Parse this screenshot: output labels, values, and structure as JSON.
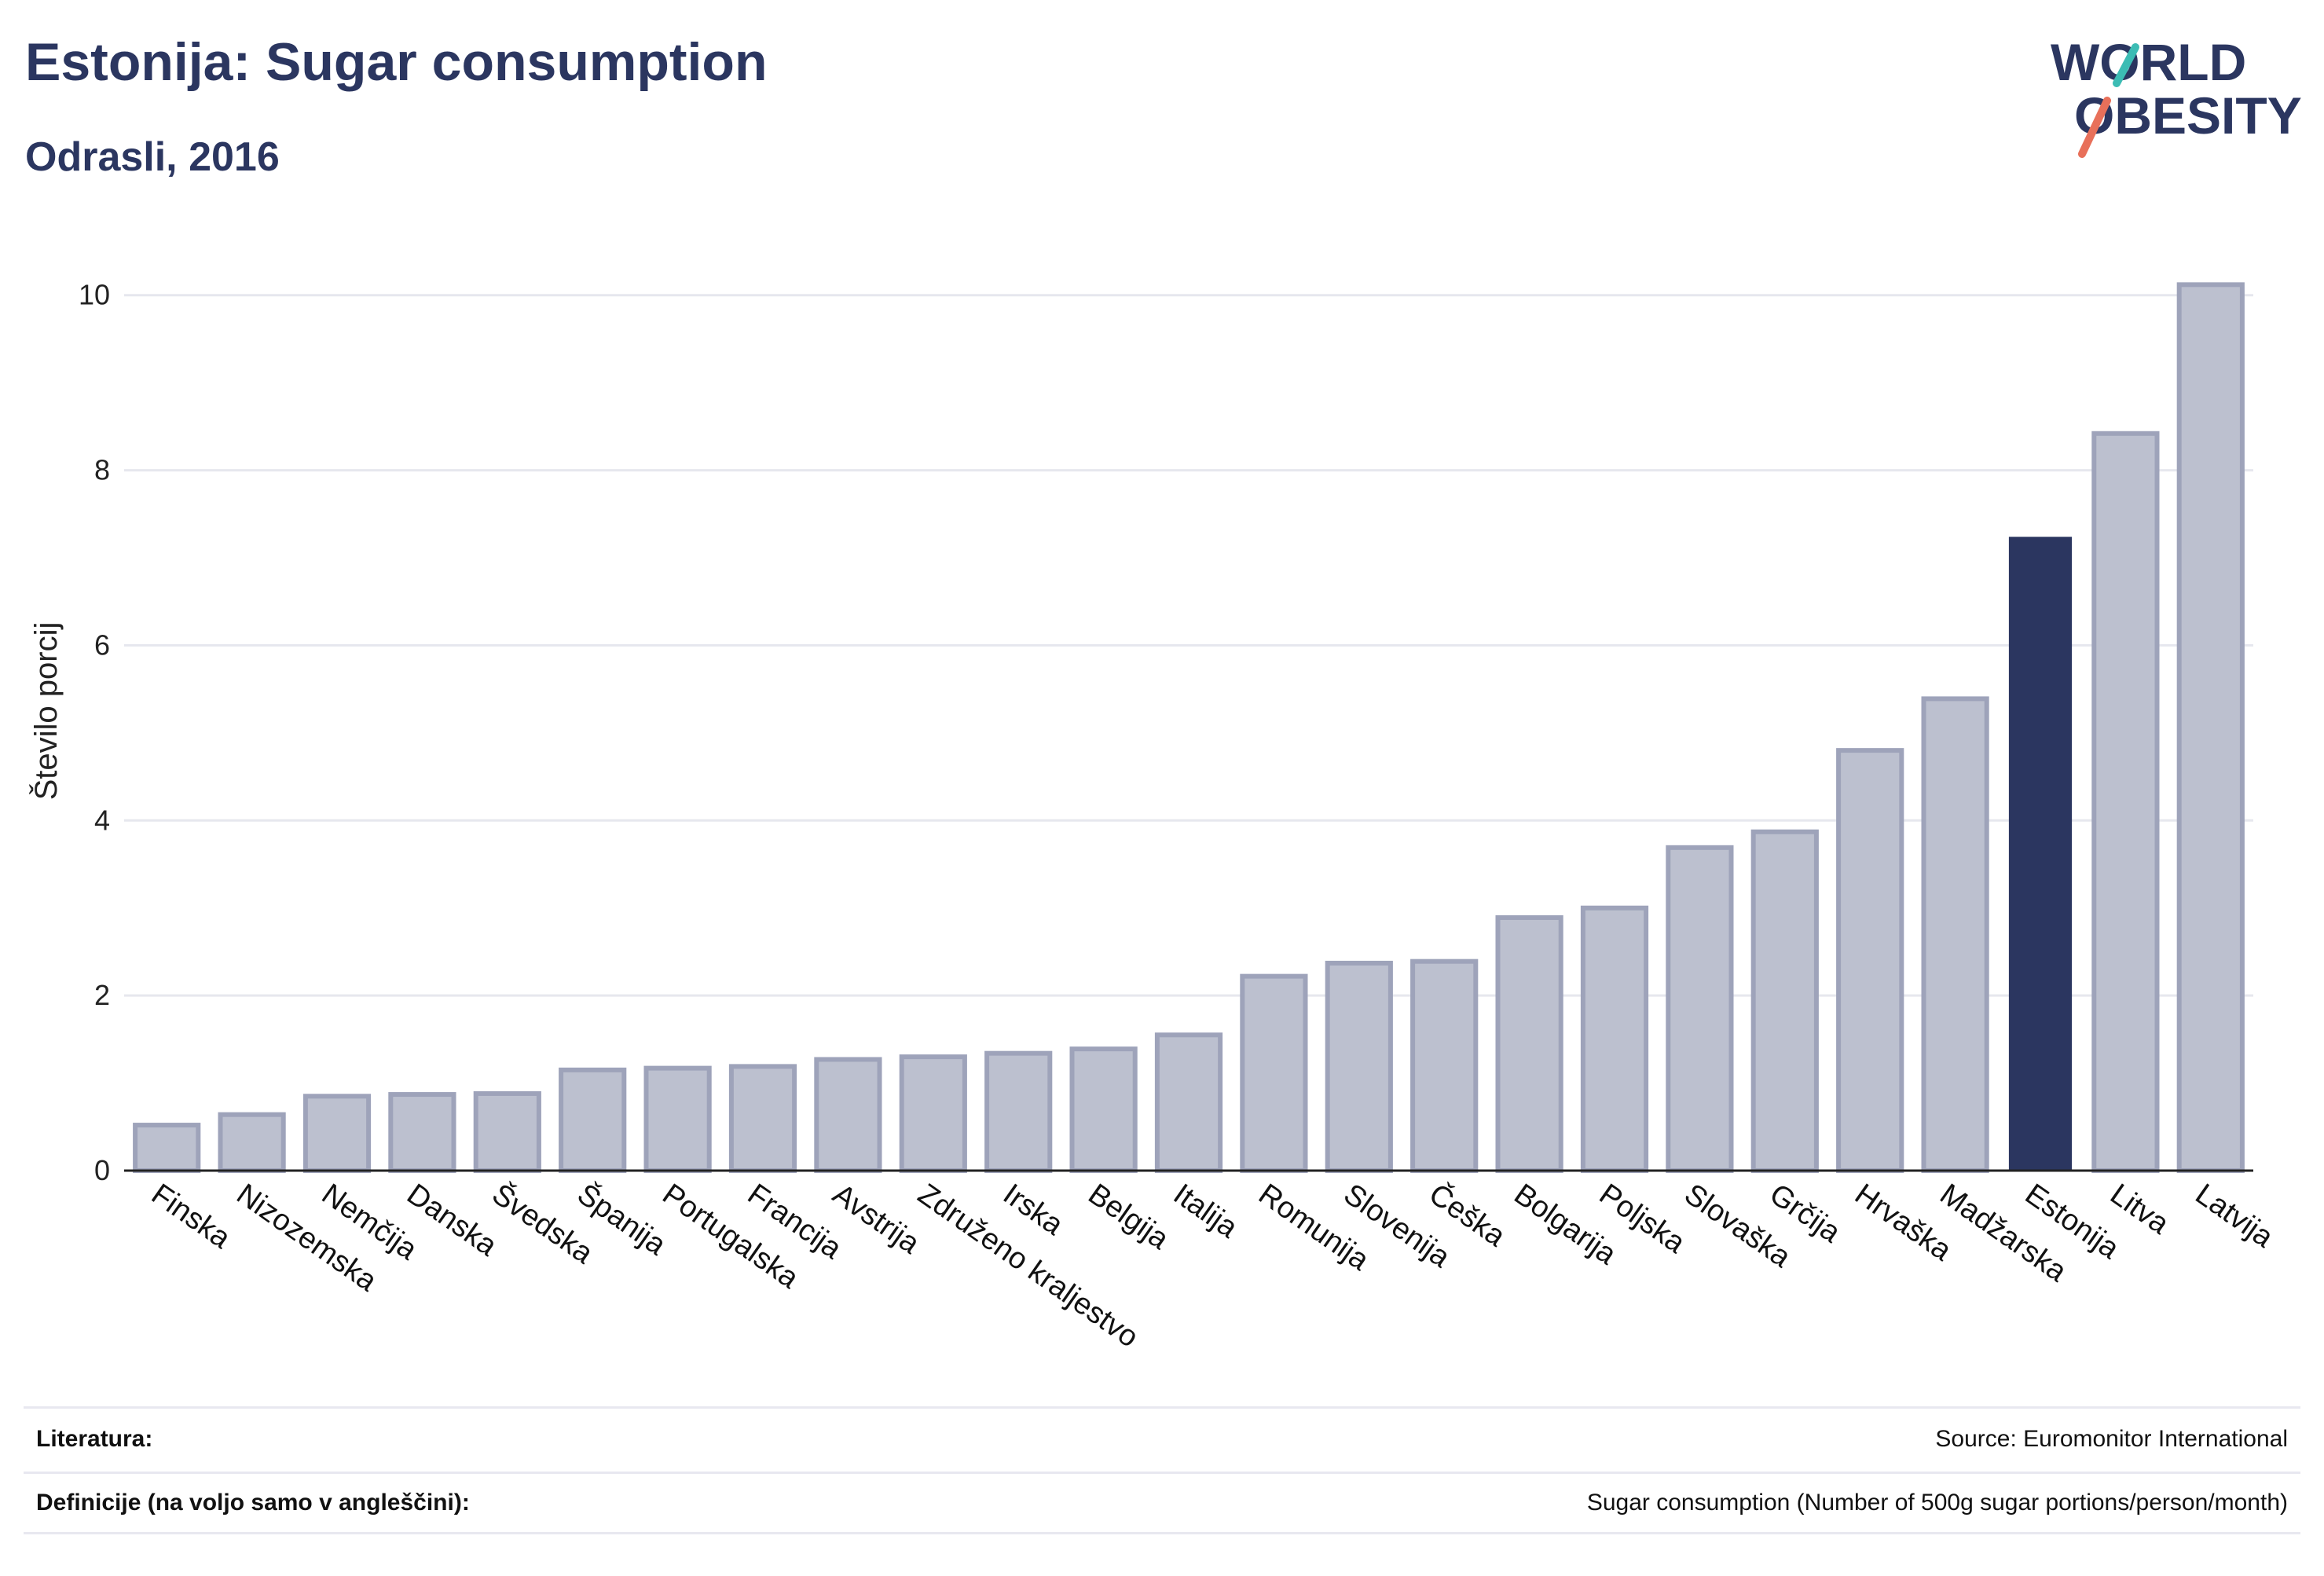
{
  "header": {
    "title": "Estonija: Sugar consumption",
    "subtitle": "Odrasli, 2016"
  },
  "logo": {
    "line1": "WORLD",
    "line2": "OBESITY",
    "slash_colors": [
      "#3cbcb4",
      "#e8705a"
    ]
  },
  "colors": {
    "bar": "#bcc0cf",
    "bar_stroke": "#9ea3ba",
    "highlight": "#2b3660",
    "grid": "#e6e7ee",
    "axis": "#222222"
  },
  "chart_data": {
    "type": "bar",
    "ylabel": "Število porcij",
    "xlabel": "",
    "ylim": [
      0,
      10.5
    ],
    "yticks": [
      0,
      2,
      4,
      6,
      8,
      10
    ],
    "grid": true,
    "highlight": "Estonija",
    "categories": [
      "Finska",
      "Nizozemska",
      "Nemčija",
      "Danska",
      "Švedska",
      "Španija",
      "Portugalska",
      "Francija",
      "Avstrija",
      "Združeno kraljestvo",
      "Irska",
      "Belgija",
      "Italija",
      "Romunija",
      "Slovenija",
      "Češka",
      "Bolgarija",
      "Poljska",
      "Slovaška",
      "Grčija",
      "Hrvaška",
      "Madžarska",
      "Estonija",
      "Litva",
      "Latvija"
    ],
    "values": [
      0.52,
      0.64,
      0.85,
      0.87,
      0.88,
      1.15,
      1.17,
      1.19,
      1.27,
      1.3,
      1.34,
      1.39,
      1.55,
      2.22,
      2.37,
      2.39,
      2.89,
      3.0,
      3.69,
      3.87,
      4.8,
      5.39,
      7.24,
      8.42,
      10.12
    ]
  },
  "footer": {
    "references_label": "Literatura:",
    "references_value": "Source: Euromonitor International",
    "definitions_label": "Definicije (na voljo samo v angleščini):",
    "definitions_value": "Sugar consumption (Number of 500g sugar portions/person/month)"
  }
}
